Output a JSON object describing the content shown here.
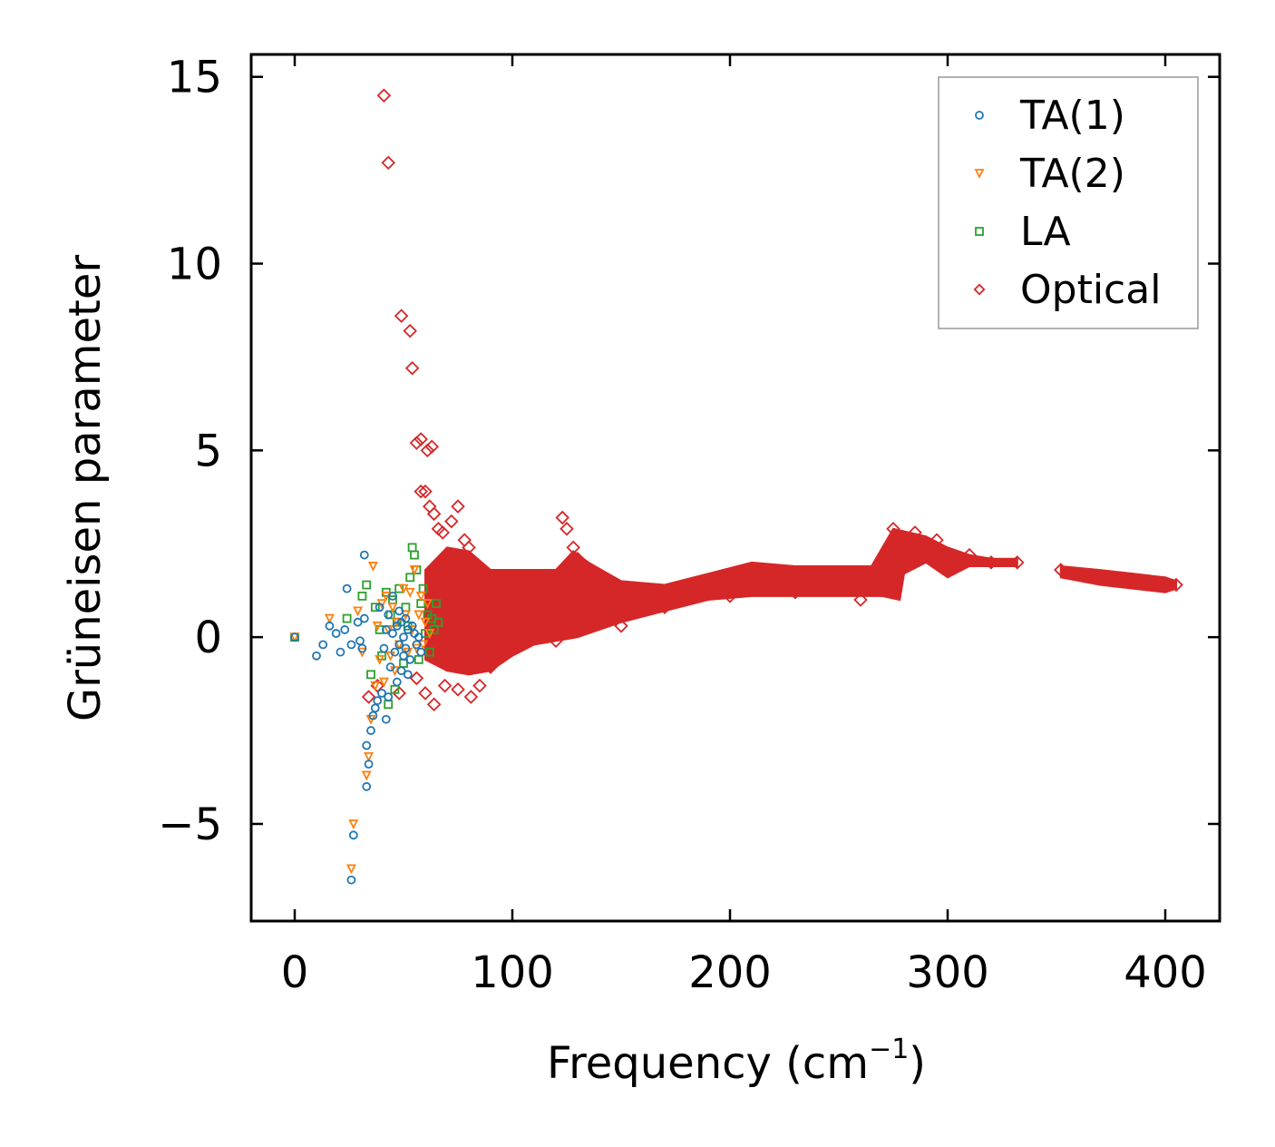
{
  "chart_data": {
    "type": "scatter",
    "title": "",
    "xlabel": "Frequency (cm",
    "xlabel_sup": "−1",
    "xlabel_close": ")",
    "ylabel": "Grüneisen parameter",
    "xlim": [
      -20,
      425
    ],
    "ylim": [
      -7.6,
      15.6
    ],
    "xticks": [
      0,
      100,
      200,
      300,
      400
    ],
    "xtick_labels": [
      "0",
      "100",
      "200",
      "300",
      "400"
    ],
    "yticks": [
      -5,
      0,
      5,
      10,
      15
    ],
    "ytick_labels": [
      "−5",
      "0",
      "5",
      "10",
      "15"
    ],
    "grid": false,
    "legend_position": "top-right",
    "series": [
      {
        "name": "TA(1)",
        "marker": "circle",
        "color": "#1f77b4",
        "points": [
          [
            0,
            0
          ],
          [
            10,
            -0.5
          ],
          [
            13,
            -0.2
          ],
          [
            16,
            0.3
          ],
          [
            19,
            0.1
          ],
          [
            21,
            -0.4
          ],
          [
            23,
            0.2
          ],
          [
            24,
            1.3
          ],
          [
            26,
            -0.2
          ],
          [
            26,
            -6.5
          ],
          [
            27,
            -5.3
          ],
          [
            29,
            0.4
          ],
          [
            30,
            -0.1
          ],
          [
            31,
            -0.3
          ],
          [
            32,
            2.2
          ],
          [
            32,
            0.5
          ],
          [
            33,
            -4
          ],
          [
            33,
            -2.9
          ],
          [
            34,
            -3.4
          ],
          [
            35,
            -2.5
          ],
          [
            36,
            -2.1
          ],
          [
            37,
            -1.9
          ],
          [
            38,
            -1.7
          ],
          [
            39,
            0.8
          ],
          [
            40,
            -1.5
          ],
          [
            41,
            -0.3
          ],
          [
            42,
            0.2
          ],
          [
            42,
            -2.2
          ],
          [
            43,
            -1.6
          ],
          [
            43,
            0.6
          ],
          [
            44,
            -0.8
          ],
          [
            45,
            0.1
          ],
          [
            45,
            1.1
          ],
          [
            46,
            -0.4
          ],
          [
            47,
            0.3
          ],
          [
            47,
            -1.2
          ],
          [
            48,
            0.7
          ],
          [
            48,
            -0.2
          ],
          [
            49,
            0.4
          ],
          [
            49,
            -0.9
          ],
          [
            50,
            0.0
          ],
          [
            50,
            -0.5
          ],
          [
            51,
            0.5
          ],
          [
            51,
            -0.3
          ],
          [
            52,
            0.2
          ],
          [
            52,
            -1
          ],
          [
            53,
            -0.6
          ],
          [
            54,
            0.3
          ],
          [
            55,
            0.1
          ],
          [
            56,
            -0.2
          ],
          [
            57,
            0.0
          ],
          [
            58,
            -0.4
          ]
        ]
      },
      {
        "name": "TA(2)",
        "marker": "triangle-down",
        "color": "#ff7f0e",
        "points": [
          [
            0,
            0
          ],
          [
            16,
            0.5
          ],
          [
            26,
            -6.2
          ],
          [
            27,
            -5
          ],
          [
            29,
            0.7
          ],
          [
            31,
            -0.4
          ],
          [
            33,
            -3.7
          ],
          [
            34,
            -3.2
          ],
          [
            35,
            -2.2
          ],
          [
            36,
            1.9
          ],
          [
            37,
            -1.3
          ],
          [
            38,
            0.3
          ],
          [
            39,
            -0.6
          ],
          [
            40,
            0.9
          ],
          [
            41,
            -1.2
          ],
          [
            42,
            1.1
          ],
          [
            43,
            0.2
          ],
          [
            44,
            -0.5
          ],
          [
            45,
            0.8
          ],
          [
            46,
            -0.9
          ],
          [
            47,
            0.4
          ],
          [
            48,
            -0.2
          ],
          [
            50,
            1.3
          ],
          [
            51,
            0.6
          ],
          [
            52,
            -0.4
          ],
          [
            53,
            1.2
          ],
          [
            54,
            0.2
          ],
          [
            55,
            1.8
          ],
          [
            56,
            -0.3
          ],
          [
            57,
            0.6
          ],
          [
            58,
            1.1
          ],
          [
            59,
            -0.2
          ],
          [
            60,
            0.4
          ],
          [
            61,
            0.9
          ],
          [
            62,
            0.1
          ]
        ]
      },
      {
        "name": "LA",
        "marker": "square",
        "color": "#2ca02c",
        "points": [
          [
            0,
            0
          ],
          [
            24,
            0.5
          ],
          [
            31,
            1.1
          ],
          [
            33,
            1.4
          ],
          [
            35,
            -1.0
          ],
          [
            37,
            0.8
          ],
          [
            39,
            0.2
          ],
          [
            40,
            -0.5
          ],
          [
            42,
            1.2
          ],
          [
            43,
            -1.8
          ],
          [
            44,
            0.6
          ],
          [
            45,
            1.0
          ],
          [
            46,
            -1.4
          ],
          [
            47,
            0.4
          ],
          [
            48,
            1.3
          ],
          [
            50,
            -0.7
          ],
          [
            51,
            0.8
          ],
          [
            52,
            0.3
          ],
          [
            53,
            1.6
          ],
          [
            54,
            2.4
          ],
          [
            55,
            2.2
          ],
          [
            56,
            1.8
          ],
          [
            57,
            -0.6
          ],
          [
            58,
            0.9
          ],
          [
            59,
            1.3
          ],
          [
            60,
            0.1
          ],
          [
            61,
            0.6
          ],
          [
            62,
            -0.4
          ],
          [
            63,
            0.5
          ],
          [
            64,
            0.2
          ],
          [
            65,
            0.9
          ],
          [
            66,
            0.4
          ]
        ]
      },
      {
        "name": "Optical",
        "marker": "diamond",
        "color": "#d62728",
        "points": [
          [
            41,
            14.5
          ],
          [
            43,
            12.7
          ],
          [
            49,
            8.6
          ],
          [
            53,
            8.2
          ],
          [
            54,
            7.2
          ],
          [
            56,
            5.2
          ],
          [
            58,
            5.3
          ],
          [
            61,
            5.0
          ],
          [
            63,
            5.1
          ],
          [
            58,
            3.9
          ],
          [
            60,
            3.9
          ],
          [
            62,
            3.5
          ],
          [
            64,
            3.3
          ],
          [
            66,
            2.9
          ],
          [
            68,
            2.8
          ],
          [
            72,
            3.1
          ],
          [
            75,
            3.5
          ],
          [
            78,
            2.6
          ],
          [
            80,
            2.4
          ],
          [
            34,
            -1.6
          ],
          [
            38,
            -1.3
          ],
          [
            48,
            -1.5
          ],
          [
            56,
            -1.1
          ],
          [
            60,
            -1.5
          ],
          [
            64,
            -1.8
          ],
          [
            69,
            -1.3
          ],
          [
            75,
            -1.4
          ],
          [
            81,
            -1.6
          ],
          [
            85,
            -1.3
          ],
          [
            90,
            -0.8
          ],
          [
            96,
            -0.4
          ],
          [
            120,
            -0.1
          ],
          [
            123,
            3.2
          ],
          [
            125,
            2.9
          ],
          [
            128,
            2.4
          ],
          [
            130,
            2.1
          ],
          [
            133,
            1.9
          ],
          [
            150,
            0.3
          ],
          [
            170,
            0.8
          ],
          [
            200,
            1.1
          ],
          [
            230,
            1.2
          ],
          [
            260,
            1.0
          ],
          [
            275,
            2.9
          ],
          [
            285,
            2.8
          ],
          [
            295,
            2.6
          ],
          [
            300,
            1.8
          ],
          [
            310,
            2.2
          ],
          [
            320,
            2.0
          ],
          [
            332,
            2.0
          ],
          [
            352,
            1.8
          ],
          [
            370,
            1.6
          ],
          [
            390,
            1.5
          ],
          [
            405,
            1.4
          ]
        ]
      }
    ],
    "optical_band": {
      "upper": [
        [
          60,
          1.8
        ],
        [
          70,
          2.4
        ],
        [
          80,
          2.3
        ],
        [
          90,
          1.8
        ],
        [
          100,
          1.8
        ],
        [
          110,
          1.8
        ],
        [
          120,
          1.8
        ],
        [
          128,
          2.3
        ],
        [
          135,
          2.0
        ],
        [
          150,
          1.5
        ],
        [
          170,
          1.4
        ],
        [
          190,
          1.7
        ],
        [
          210,
          2.0
        ],
        [
          230,
          1.9
        ],
        [
          250,
          1.9
        ],
        [
          265,
          1.9
        ],
        [
          275,
          2.9
        ],
        [
          290,
          2.7
        ],
        [
          300,
          2.4
        ],
        [
          310,
          2.2
        ],
        [
          320,
          2.1
        ],
        [
          332,
          2.1
        ]
      ],
      "lower": [
        [
          332,
          1.9
        ],
        [
          320,
          1.9
        ],
        [
          310,
          1.9
        ],
        [
          300,
          1.6
        ],
        [
          290,
          2.0
        ],
        [
          280,
          1.7
        ],
        [
          278,
          1.0
        ],
        [
          270,
          1.1
        ],
        [
          250,
          1.1
        ],
        [
          230,
          1.1
        ],
        [
          210,
          1.1
        ],
        [
          190,
          1.0
        ],
        [
          170,
          0.7
        ],
        [
          150,
          0.4
        ],
        [
          130,
          0.0
        ],
        [
          110,
          -0.2
        ],
        [
          100,
          -0.5
        ],
        [
          90,
          -0.9
        ],
        [
          80,
          -1.0
        ],
        [
          70,
          -0.9
        ],
        [
          60,
          -0.6
        ]
      ],
      "segment2_upper": [
        [
          352,
          1.9
        ],
        [
          370,
          1.8
        ],
        [
          385,
          1.7
        ],
        [
          400,
          1.6
        ],
        [
          405,
          1.5
        ]
      ],
      "segment2_lower": [
        [
          405,
          1.3
        ],
        [
          400,
          1.2
        ],
        [
          385,
          1.3
        ],
        [
          370,
          1.4
        ],
        [
          352,
          1.6
        ]
      ]
    },
    "legend": {
      "entries": [
        "TA(1)",
        "TA(2)",
        "LA",
        "Optical"
      ]
    }
  }
}
